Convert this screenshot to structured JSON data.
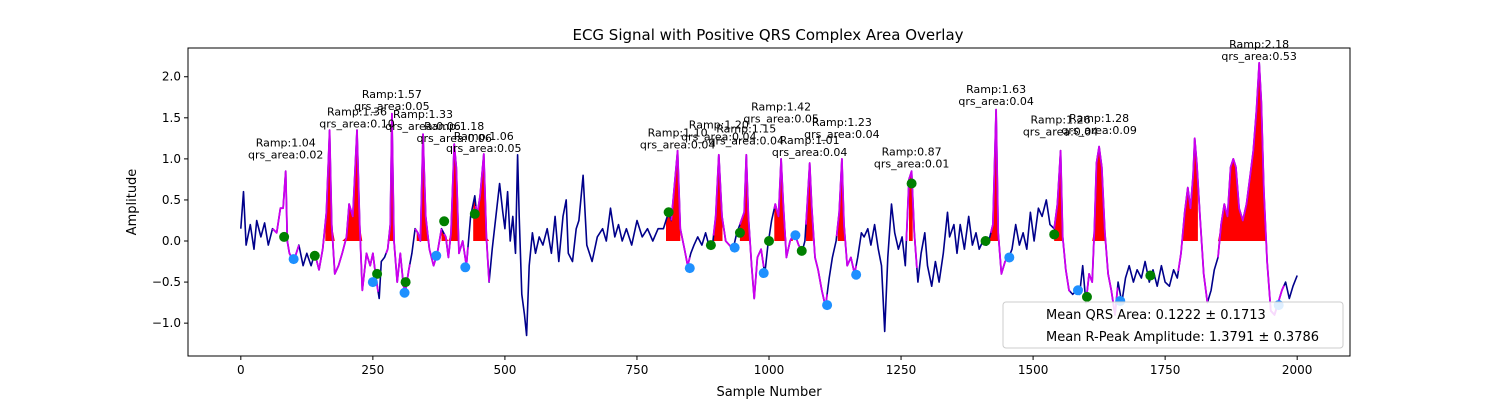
{
  "chart_data": {
    "type": "line",
    "title": "ECG Signal with Positive QRS Complex Area Overlay",
    "xlabel": "Sample Number",
    "ylabel": "Amplitude",
    "xlim": [
      -100,
      2100
    ],
    "ylim": [
      -1.4,
      2.35
    ],
    "xticks": [
      0,
      250,
      500,
      750,
      1000,
      1250,
      1500,
      1750,
      2000
    ],
    "yticks": [
      -1.0,
      -0.5,
      0.0,
      0.5,
      1.0,
      1.5,
      2.0
    ],
    "xtick_labels": [
      "0",
      "250",
      "500",
      "750",
      "1000",
      "1250",
      "1500",
      "1750",
      "2000"
    ],
    "ytick_labels": [
      "−1.0",
      "−0.5",
      "0.0",
      "0.5",
      "1.0",
      "1.5",
      "2.0"
    ],
    "grid": false,
    "colors": {
      "signal": "#00008b",
      "qrs": "#cc00ee",
      "area": "#ff0000",
      "onset": "#008000",
      "offset": "#1e90ff"
    },
    "keypoints": [
      [
        0,
        0.15
      ],
      [
        5,
        0.6
      ],
      [
        10,
        -0.05
      ],
      [
        18,
        0.2
      ],
      [
        25,
        -0.1
      ],
      [
        30,
        0.25
      ],
      [
        38,
        0.05
      ],
      [
        45,
        0.22
      ],
      [
        52,
        -0.05
      ],
      [
        60,
        0.15
      ],
      [
        68,
        0.1
      ],
      [
        75,
        0.4
      ],
      [
        80,
        0.4
      ],
      [
        85,
        0.85
      ],
      [
        88,
        0.0
      ],
      [
        92,
        -0.15
      ],
      [
        100,
        -0.25
      ],
      [
        110,
        -0.05
      ],
      [
        118,
        -0.3
      ],
      [
        125,
        -0.15
      ],
      [
        133,
        -0.3
      ],
      [
        140,
        -0.15
      ],
      [
        148,
        -0.35
      ],
      [
        155,
        -0.1
      ],
      [
        162,
        0.35
      ],
      [
        168,
        1.35
      ],
      [
        172,
        0.2
      ],
      [
        178,
        -0.4
      ],
      [
        185,
        -0.3
      ],
      [
        192,
        -0.15
      ],
      [
        200,
        0.05
      ],
      [
        205,
        0.45
      ],
      [
        212,
        0.3
      ],
      [
        220,
        1.35
      ],
      [
        225,
        0.2
      ],
      [
        230,
        -0.6
      ],
      [
        238,
        -0.15
      ],
      [
        245,
        -0.3
      ],
      [
        250,
        -0.15
      ],
      [
        256,
        -0.45
      ],
      [
        262,
        -0.7
      ],
      [
        266,
        -0.25
      ],
      [
        272,
        -0.2
      ],
      [
        278,
        -0.1
      ],
      [
        283,
        0.2
      ],
      [
        286,
        1.55
      ],
      [
        290,
        0.0
      ],
      [
        296,
        -0.5
      ],
      [
        302,
        -0.15
      ],
      [
        308,
        -0.55
      ],
      [
        312,
        -0.6
      ],
      [
        318,
        -0.35
      ],
      [
        324,
        -0.15
      ],
      [
        330,
        0.15
      ],
      [
        335,
        0.1
      ],
      [
        340,
        0.0
      ],
      [
        345,
        1.3
      ],
      [
        350,
        0.3
      ],
      [
        357,
        -0.1
      ],
      [
        365,
        -0.3
      ],
      [
        372,
        -0.15
      ],
      [
        380,
        0.15
      ],
      [
        388,
        0.05
      ],
      [
        393,
        -0.2
      ],
      [
        398,
        0.1
      ],
      [
        404,
        1.18
      ],
      [
        408,
        0.9
      ],
      [
        413,
        -0.15
      ],
      [
        420,
        0.0
      ],
      [
        427,
        -0.3
      ],
      [
        435,
        0.3
      ],
      [
        443,
        0.55
      ],
      [
        447,
        0.3
      ],
      [
        453,
        0.55
      ],
      [
        460,
        1.06
      ],
      [
        465,
        0.05
      ],
      [
        470,
        -0.5
      ],
      [
        476,
        -0.1
      ],
      [
        483,
        0.3
      ],
      [
        490,
        0.7
      ],
      [
        496,
        0.35
      ],
      [
        500,
        0.15
      ],
      [
        505,
        0.6
      ],
      [
        510,
        0.0
      ],
      [
        515,
        0.3
      ],
      [
        520,
        -0.15
      ],
      [
        524,
        1.05
      ],
      [
        527,
        0.3
      ],
      [
        532,
        -0.65
      ],
      [
        537,
        -0.9
      ],
      [
        541,
        -1.15
      ],
      [
        546,
        -0.3
      ],
      [
        552,
        0.1
      ],
      [
        558,
        -0.15
      ],
      [
        565,
        0.05
      ],
      [
        572,
        -0.05
      ],
      [
        580,
        0.15
      ],
      [
        588,
        -0.15
      ],
      [
        595,
        0.3
      ],
      [
        602,
        -0.25
      ],
      [
        610,
        0.3
      ],
      [
        616,
        0.5
      ],
      [
        620,
        -0.15
      ],
      [
        628,
        -0.25
      ],
      [
        635,
        0.15
      ],
      [
        640,
        0.25
      ],
      [
        648,
        0.8
      ],
      [
        655,
        -0.05
      ],
      [
        665,
        -0.25
      ],
      [
        675,
        0.05
      ],
      [
        685,
        0.15
      ],
      [
        692,
        0.0
      ],
      [
        700,
        0.4
      ],
      [
        708,
        0.05
      ],
      [
        715,
        0.2
      ],
      [
        722,
        0.0
      ],
      [
        730,
        0.15
      ],
      [
        740,
        -0.05
      ],
      [
        750,
        0.25
      ],
      [
        760,
        0.05
      ],
      [
        770,
        0.15
      ],
      [
        780,
        0.0
      ],
      [
        790,
        0.15
      ],
      [
        800,
        0.15
      ],
      [
        810,
        0.35
      ],
      [
        815,
        0.25
      ],
      [
        820,
        0.6
      ],
      [
        827,
        1.1
      ],
      [
        832,
        0.15
      ],
      [
        840,
        -0.1
      ],
      [
        846,
        -0.3
      ],
      [
        852,
        -0.15
      ],
      [
        858,
        -0.05
      ],
      [
        865,
        0.05
      ],
      [
        873,
        -0.05
      ],
      [
        880,
        0.1
      ],
      [
        886,
        -0.05
      ],
      [
        893,
        -0.05
      ],
      [
        899,
        0.3
      ],
      [
        905,
        1.05
      ],
      [
        911,
        0.3
      ],
      [
        918,
        0.0
      ],
      [
        925,
        -0.05
      ],
      [
        932,
        -0.1
      ],
      [
        939,
        0.1
      ],
      [
        945,
        0.2
      ],
      [
        953,
        0.35
      ],
      [
        957,
        1.05
      ],
      [
        961,
        0.3
      ],
      [
        967,
        -0.3
      ],
      [
        972,
        -0.7
      ],
      [
        978,
        -0.2
      ],
      [
        985,
        -0.1
      ],
      [
        992,
        -0.4
      ],
      [
        998,
        -0.05
      ],
      [
        1005,
        0.25
      ],
      [
        1012,
        0.45
      ],
      [
        1018,
        0.3
      ],
      [
        1023,
        1.0
      ],
      [
        1027,
        0.45
      ],
      [
        1033,
        -0.2
      ],
      [
        1040,
        0.0
      ],
      [
        1048,
        0.1
      ],
      [
        1056,
        -0.05
      ],
      [
        1063,
        -0.12
      ],
      [
        1068,
        0.0
      ],
      [
        1072,
        0.4
      ],
      [
        1077,
        0.95
      ],
      [
        1081,
        0.4
      ],
      [
        1087,
        -0.2
      ],
      [
        1093,
        -0.35
      ],
      [
        1100,
        -0.6
      ],
      [
        1107,
        -0.8
      ],
      [
        1114,
        -0.45
      ],
      [
        1120,
        -0.2
      ],
      [
        1127,
        0.0
      ],
      [
        1133,
        0.35
      ],
      [
        1138,
        1.0
      ],
      [
        1142,
        0.2
      ],
      [
        1148,
        -0.3
      ],
      [
        1155,
        -0.2
      ],
      [
        1162,
        -0.4
      ],
      [
        1168,
        -0.2
      ],
      [
        1175,
        0.1
      ],
      [
        1180,
        0.05
      ],
      [
        1187,
        0.15
      ],
      [
        1193,
        -0.05
      ],
      [
        1200,
        0.2
      ],
      [
        1207,
        -0.1
      ],
      [
        1213,
        -0.3
      ],
      [
        1219,
        -1.1
      ],
      [
        1225,
        -0.2
      ],
      [
        1232,
        0.45
      ],
      [
        1238,
        0.1
      ],
      [
        1245,
        -0.1
      ],
      [
        1252,
        0.05
      ],
      [
        1258,
        -0.3
      ],
      [
        1265,
        0.75
      ],
      [
        1270,
        0.85
      ],
      [
        1275,
        0.1
      ],
      [
        1282,
        -0.5
      ],
      [
        1288,
        -0.15
      ],
      [
        1295,
        0.1
      ],
      [
        1300,
        -0.3
      ],
      [
        1308,
        -0.55
      ],
      [
        1315,
        -0.25
      ],
      [
        1322,
        -0.5
      ],
      [
        1330,
        -0.15
      ],
      [
        1338,
        0.35
      ],
      [
        1342,
        0.05
      ],
      [
        1350,
        0.2
      ],
      [
        1356,
        -0.15
      ],
      [
        1362,
        0.2
      ],
      [
        1370,
        -0.1
      ],
      [
        1378,
        0.3
      ],
      [
        1385,
        -0.05
      ],
      [
        1392,
        0.1
      ],
      [
        1398,
        -0.1
      ],
      [
        1405,
        0.0
      ],
      [
        1412,
        -0.05
      ],
      [
        1418,
        0.05
      ],
      [
        1424,
        0.2
      ],
      [
        1430,
        1.6
      ],
      [
        1434,
        0.1
      ],
      [
        1440,
        -0.4
      ],
      [
        1447,
        -0.25
      ],
      [
        1454,
        -0.2
      ],
      [
        1460,
        -0.1
      ],
      [
        1467,
        0.2
      ],
      [
        1474,
        -0.05
      ],
      [
        1481,
        0.1
      ],
      [
        1488,
        -0.1
      ],
      [
        1495,
        0.35
      ],
      [
        1502,
        0.0
      ],
      [
        1510,
        0.4
      ],
      [
        1517,
        0.3
      ],
      [
        1525,
        0.5
      ],
      [
        1532,
        0.2
      ],
      [
        1540,
        0.15
      ],
      [
        1546,
        0.45
      ],
      [
        1552,
        1.1
      ],
      [
        1556,
        0.05
      ],
      [
        1562,
        -0.35
      ],
      [
        1568,
        -0.6
      ],
      [
        1575,
        -0.65
      ],
      [
        1582,
        -0.6
      ],
      [
        1588,
        -0.65
      ],
      [
        1594,
        -0.3
      ],
      [
        1600,
        -0.75
      ],
      [
        1606,
        -0.4
      ],
      [
        1612,
        -0.5
      ],
      [
        1616,
        0.15
      ],
      [
        1620,
        0.95
      ],
      [
        1625,
        1.15
      ],
      [
        1630,
        0.9
      ],
      [
        1636,
        0.1
      ],
      [
        1642,
        -0.4
      ],
      [
        1648,
        -0.6
      ],
      [
        1655,
        -0.9
      ],
      [
        1661,
        -0.5
      ],
      [
        1668,
        -0.75
      ],
      [
        1675,
        -0.45
      ],
      [
        1682,
        -0.3
      ],
      [
        1690,
        -0.5
      ],
      [
        1697,
        -0.35
      ],
      [
        1705,
        -0.45
      ],
      [
        1712,
        -0.25
      ],
      [
        1720,
        -0.5
      ],
      [
        1727,
        -0.35
      ],
      [
        1735,
        -0.55
      ],
      [
        1743,
        -0.3
      ],
      [
        1750,
        -0.5
      ],
      [
        1758,
        -0.55
      ],
      [
        1766,
        -0.35
      ],
      [
        1773,
        -0.45
      ],
      [
        1780,
        -0.15
      ],
      [
        1787,
        0.35
      ],
      [
        1793,
        0.65
      ],
      [
        1798,
        0.4
      ],
      [
        1803,
        0.8
      ],
      [
        1806,
        1.25
      ],
      [
        1810,
        0.95
      ],
      [
        1816,
        0.3
      ],
      [
        1823,
        -0.4
      ],
      [
        1830,
        -0.75
      ],
      [
        1837,
        -0.6
      ],
      [
        1843,
        -0.35
      ],
      [
        1850,
        -0.2
      ],
      [
        1856,
        0.2
      ],
      [
        1862,
        0.45
      ],
      [
        1868,
        0.3
      ],
      [
        1874,
        0.9
      ],
      [
        1879,
        1.0
      ],
      [
        1884,
        0.9
      ],
      [
        1890,
        0.4
      ],
      [
        1897,
        0.25
      ],
      [
        1904,
        0.45
      ],
      [
        1911,
        0.8
      ],
      [
        1917,
        1.1
      ],
      [
        1923,
        1.6
      ],
      [
        1928,
        2.17
      ],
      [
        1932,
        1.7
      ],
      [
        1937,
        0.6
      ],
      [
        1943,
        -0.25
      ],
      [
        1950,
        -0.85
      ],
      [
        1957,
        -0.9
      ],
      [
        1964,
        -0.75
      ],
      [
        1971,
        -0.6
      ],
      [
        1978,
        -0.5
      ],
      [
        1985,
        -0.7
      ],
      [
        1992,
        -0.55
      ],
      [
        2000,
        -0.42
      ]
    ],
    "qrs_segments": [
      [
        60,
        110
      ],
      [
        140,
        260
      ],
      [
        275,
        320
      ],
      [
        330,
        380
      ],
      [
        385,
        430
      ],
      [
        445,
        470
      ],
      [
        815,
        850
      ],
      [
        895,
        930
      ],
      [
        945,
        990
      ],
      [
        1010,
        1060
      ],
      [
        1070,
        1110
      ],
      [
        1128,
        1165
      ],
      [
        1260,
        1280
      ],
      [
        1420,
        1450
      ],
      [
        1540,
        1570
      ],
      [
        1600,
        1660
      ],
      [
        1775,
        1830
      ],
      [
        1850,
        1975
      ]
    ],
    "area_segments": [
      [
        160,
        245
      ],
      [
        276,
        300
      ],
      [
        333,
        355
      ],
      [
        380,
        420
      ],
      [
        440,
        478
      ],
      [
        805,
        832
      ],
      [
        895,
        912
      ],
      [
        945,
        965
      ],
      [
        1010,
        1045
      ],
      [
        1070,
        1083
      ],
      [
        1130,
        1143
      ],
      [
        1265,
        1272
      ],
      [
        1418,
        1434
      ],
      [
        1540,
        1555
      ],
      [
        1612,
        1636
      ],
      [
        1783,
        1812
      ],
      [
        1830,
        1940
      ]
    ],
    "onsets": [
      [
        82,
        0.05
      ],
      [
        140,
        -0.18
      ],
      [
        258,
        -0.4
      ],
      [
        312,
        -0.5
      ],
      [
        385,
        0.24
      ],
      [
        443,
        0.33
      ],
      [
        810,
        0.35
      ],
      [
        890,
        -0.05
      ],
      [
        945,
        0.1
      ],
      [
        1000,
        0.0
      ],
      [
        1062,
        -0.12
      ],
      [
        1270,
        0.7
      ],
      [
        1410,
        0.0
      ],
      [
        1540,
        0.08
      ],
      [
        1602,
        -0.68
      ],
      [
        1722,
        -0.42
      ]
    ],
    "offsets": [
      [
        100,
        -0.22
      ],
      [
        250,
        -0.5
      ],
      [
        310,
        -0.63
      ],
      [
        370,
        -0.18
      ],
      [
        425,
        -0.32
      ],
      [
        850,
        -0.33
      ],
      [
        935,
        -0.08
      ],
      [
        990,
        -0.39
      ],
      [
        1050,
        0.07
      ],
      [
        1110,
        -0.78
      ],
      [
        1165,
        -0.41
      ],
      [
        1455,
        -0.2
      ],
      [
        1585,
        -0.6
      ],
      [
        1665,
        -0.73
      ],
      [
        1965,
        -0.78
      ]
    ],
    "annotations": [
      {
        "x": 85,
        "y": 0.98,
        "ramp": "Ramp:1.04",
        "area": "qrs_area:0.02"
      },
      {
        "x": 220,
        "y": 1.36,
        "ramp": "Ramp:1.36",
        "area": "qrs_area:0.10"
      },
      {
        "x": 286,
        "y": 1.57,
        "ramp": "Ramp:1.57",
        "area": "qrs_area:0.05"
      },
      {
        "x": 345,
        "y": 1.33,
        "ramp": "Ramp:1.33",
        "area": "qrs_area:0.06"
      },
      {
        "x": 404,
        "y": 1.18,
        "ramp": "Ramp:1.18",
        "area": "qrs_area:0.06"
      },
      {
        "x": 460,
        "y": 1.06,
        "ramp": "Ramp:1.06",
        "area": "qrs_area:0.05"
      },
      {
        "x": 827,
        "y": 1.1,
        "ramp": "Ramp:1.10",
        "area": "qrs_area:0.04"
      },
      {
        "x": 905,
        "y": 1.2,
        "ramp": "Ramp:1.20",
        "area": "qrs_area:0.04"
      },
      {
        "x": 957,
        "y": 1.15,
        "ramp": "Ramp:1.15",
        "area": "qrs_area:0.04"
      },
      {
        "x": 1023,
        "y": 1.42,
        "ramp": "Ramp:1.42",
        "area": "qrs_area:0.05"
      },
      {
        "x": 1077,
        "y": 1.01,
        "ramp": "Ramp:1.01",
        "area": "qrs_area:0.04"
      },
      {
        "x": 1138,
        "y": 1.23,
        "ramp": "Ramp:1.23",
        "area": "qrs_area:0.04"
      },
      {
        "x": 1270,
        "y": 0.87,
        "ramp": "Ramp:0.87",
        "area": "qrs_area:0.01"
      },
      {
        "x": 1430,
        "y": 1.63,
        "ramp": "Ramp:1.63",
        "area": "qrs_area:0.04"
      },
      {
        "x": 1552,
        "y": 1.26,
        "ramp": "Ramp:1.26",
        "area": "qrs_area:0.04"
      },
      {
        "x": 1625,
        "y": 1.28,
        "ramp": "Ramp:1.28",
        "area": "qrs_area:0.09"
      },
      {
        "x": 1928,
        "y": 2.18,
        "ramp": "Ramp:2.18",
        "area": "qrs_area:0.53"
      }
    ],
    "legend_position": "lower-right",
    "legend": [
      "Mean QRS Area: 0.1222 ± 0.1713",
      "Mean R-Peak Amplitude: 1.3791 ± 0.3786"
    ]
  }
}
